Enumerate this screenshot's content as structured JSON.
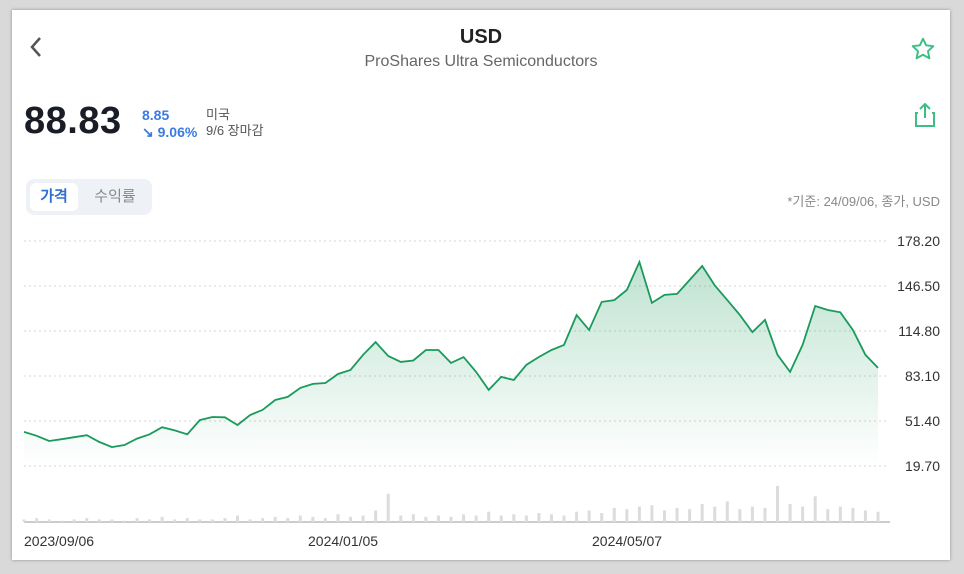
{
  "header": {
    "ticker": "USD",
    "name": "ProShares Ultra Semiconductors"
  },
  "quote": {
    "price": "88.83",
    "change": "8.85",
    "change_pct": "↘ 9.06%",
    "market": "미국",
    "session": "9/6 장마감"
  },
  "tabs": [
    {
      "label": "가격",
      "active": true
    },
    {
      "label": "수익률",
      "active": false
    }
  ],
  "basis_note": "*기준: 24/09/06, 종가, USD",
  "colors": {
    "line": "#1a9a5c",
    "accent": "#2f6fd0",
    "star": "#3cbf83"
  },
  "chart_data": {
    "type": "area",
    "ylim": [
      19.7,
      178.2
    ],
    "y_ticks": [
      "178.20",
      "146.50",
      "114.80",
      "83.10",
      "51.40",
      "19.70"
    ],
    "x_ticks": [
      "2023/09/06",
      "2024/01/05",
      "2024/05/07"
    ],
    "values": [
      43.7,
      41,
      37.3,
      38.6,
      40,
      41.4,
      36.6,
      33,
      34.5,
      39,
      42,
      47,
      44.8,
      42,
      52,
      54.2,
      54,
      48.6,
      55.6,
      59.2,
      66.2,
      68.4,
      74.7,
      77.5,
      78.2,
      84.5,
      87.3,
      98,
      107,
      97.2,
      93,
      94,
      101.4,
      101.4,
      92.3,
      96.4,
      86,
      73.3,
      82.5,
      80.3,
      91,
      96.5,
      101.4,
      105,
      126,
      115.5,
      135.3,
      136.6,
      143.7,
      163.4,
      134.6,
      140.2,
      140.9,
      150.7,
      160.6,
      147,
      136.6,
      126,
      114,
      122.6,
      98,
      86,
      105,
      132.4,
      129.6,
      128,
      115.5,
      98,
      88.83
    ],
    "volume": [
      2,
      3,
      2,
      1,
      2,
      3,
      2,
      2,
      1,
      3,
      2,
      4,
      2,
      3,
      2,
      2,
      3,
      5,
      2,
      3,
      4,
      3,
      5,
      4,
      3,
      6,
      4,
      5,
      9,
      22,
      5,
      6,
      4,
      5,
      4,
      6,
      5,
      8,
      5,
      6,
      5,
      7,
      6,
      5,
      8,
      9,
      7,
      11,
      10,
      12,
      13,
      9,
      11,
      10,
      14,
      12,
      16,
      10,
      12,
      11,
      28,
      14,
      12,
      20,
      10,
      12,
      11,
      9,
      8
    ]
  }
}
